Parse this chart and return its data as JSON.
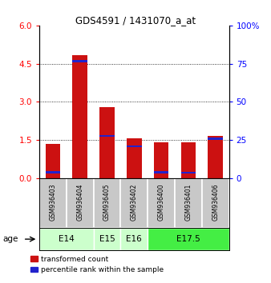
{
  "title": "GDS4591 / 1431070_a_at",
  "samples": [
    "GSM936403",
    "GSM936404",
    "GSM936405",
    "GSM936402",
    "GSM936400",
    "GSM936401",
    "GSM936406"
  ],
  "red_values": [
    1.35,
    4.83,
    2.78,
    1.58,
    1.42,
    1.42,
    1.65
  ],
  "blue_values": [
    0.09,
    0.09,
    0.09,
    0.07,
    0.09,
    0.07,
    0.09
  ],
  "blue_bottoms": [
    0.18,
    4.55,
    1.62,
    1.22,
    0.18,
    0.18,
    1.5
  ],
  "ylim_left": [
    0,
    6
  ],
  "ylim_right": [
    0,
    100
  ],
  "yticks_left": [
    0,
    1.5,
    3,
    4.5,
    6
  ],
  "yticks_right": [
    0,
    25,
    50,
    75,
    100
  ],
  "bar_color_red": "#cc1111",
  "bar_color_blue": "#2222cc",
  "bar_width": 0.55,
  "bg_sample": "#c8c8c8",
  "age_defs": [
    {
      "label": "E14",
      "start": 0,
      "end": 1,
      "color": "#ccffcc"
    },
    {
      "label": "E15",
      "start": 2,
      "end": 2,
      "color": "#ccffcc"
    },
    {
      "label": "E16",
      "start": 3,
      "end": 3,
      "color": "#ccffcc"
    },
    {
      "label": "E17.5",
      "start": 4,
      "end": 6,
      "color": "#44ee44"
    }
  ],
  "legend_red": "transformed count",
  "legend_blue": "percentile rank within the sample"
}
